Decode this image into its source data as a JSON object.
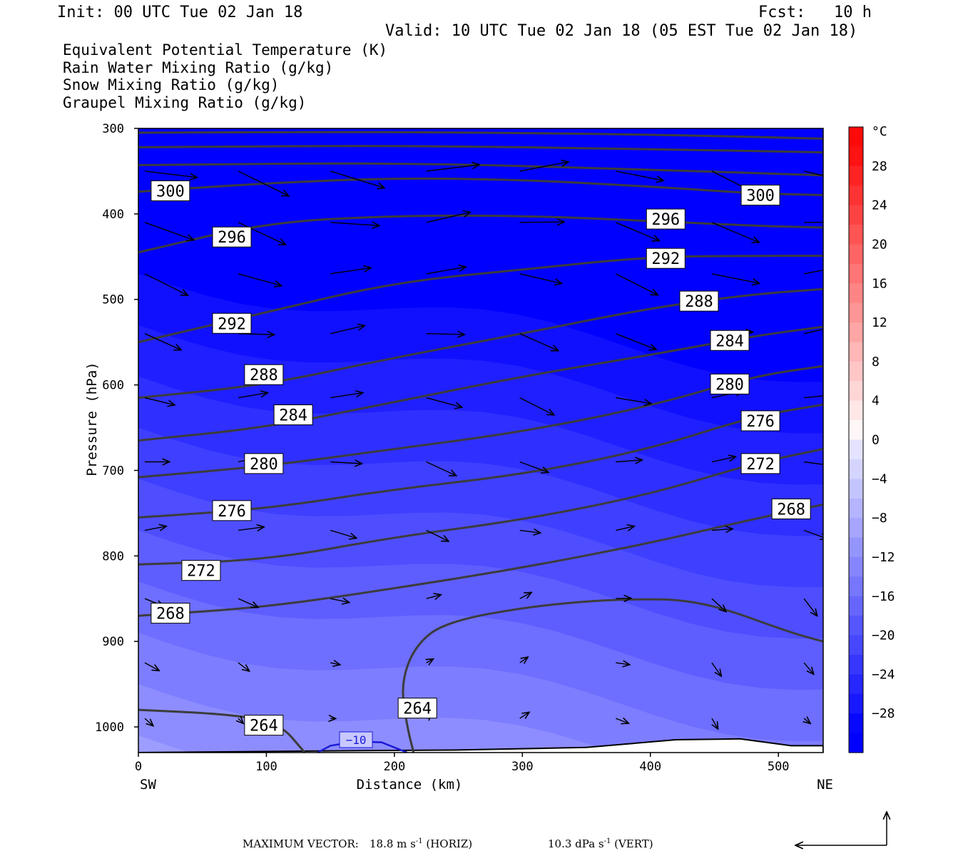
{
  "header": {
    "init": "Init: 00 UTC Tue 02 Jan 18",
    "fcst": "Fcst:   10 h",
    "valid": "Valid: 10 UTC Tue 02 Jan 18 (05 EST Tue 02 Jan 18)"
  },
  "legend": [
    {
      "label": "Equivalent Potential Temperature (K)",
      "color": "#555555"
    },
    {
      "label": "Rain Water Mixing Ratio (g/kg)",
      "color": "#1a7a1a"
    },
    {
      "label": "Snow Mixing Ratio (g/kg)",
      "color": "#ee8a4a"
    },
    {
      "label": "Graupel Mixing Ratio (g/kg)",
      "color": "#ee77ee"
    }
  ],
  "footer": {
    "max_vector_label": "MAXIMUM VECTOR:",
    "horiz": "18.8 m s",
    "horiz_unit": " (HORIZ)",
    "vert": "10.3 dPa s",
    "vert_unit": " (VERT)",
    "exp": "-1"
  },
  "chart_data": {
    "type": "contour",
    "xlabel": "Distance (km)",
    "ylabel": "Pressure (hPa)",
    "x_ends": {
      "left": "SW",
      "right": "NE"
    },
    "xlim": [
      0,
      535
    ],
    "ylim": [
      1030,
      300
    ],
    "x_ticks": [
      0,
      100,
      200,
      300,
      400,
      500
    ],
    "y_ticks": [
      300,
      400,
      500,
      600,
      700,
      800,
      900,
      1000
    ],
    "colorbar": {
      "unit": "°C",
      "ticks": [
        28,
        24,
        20,
        16,
        12,
        8,
        4,
        0,
        -4,
        -8,
        -12,
        -16,
        -20,
        -24,
        -28
      ],
      "step": 2,
      "range": [
        -32,
        32
      ]
    },
    "theta_e_contours": [
      {
        "value": 264,
        "points": [
          [
            0,
            980
          ],
          [
            70,
            985
          ],
          [
            110,
            995
          ],
          [
            130,
            1030
          ]
        ]
      },
      {
        "value": 264,
        "points": [
          [
            215,
            1030
          ],
          [
            210,
            1000
          ],
          [
            205,
            950
          ],
          [
            216,
            905
          ],
          [
            240,
            877
          ],
          [
            310,
            858
          ],
          [
            380,
            850
          ],
          [
            440,
            852
          ],
          [
            510,
            890
          ],
          [
            535,
            900
          ]
        ]
      },
      {
        "value": 268,
        "points": [
          [
            0,
            870
          ],
          [
            100,
            860
          ],
          [
            200,
            838
          ],
          [
            300,
            814
          ],
          [
            400,
            785
          ],
          [
            480,
            757
          ],
          [
            535,
            740
          ]
        ]
      },
      {
        "value": 272,
        "points": [
          [
            0,
            810
          ],
          [
            100,
            805
          ],
          [
            200,
            778
          ],
          [
            300,
            758
          ],
          [
            400,
            728
          ],
          [
            480,
            692
          ],
          [
            535,
            675
          ]
        ]
      },
      {
        "value": 276,
        "points": [
          [
            0,
            755
          ],
          [
            100,
            745
          ],
          [
            200,
            722
          ],
          [
            300,
            705
          ],
          [
            400,
            675
          ],
          [
            480,
            637
          ],
          [
            535,
            623
          ]
        ]
      },
      {
        "value": 280,
        "points": [
          [
            0,
            708
          ],
          [
            100,
            695
          ],
          [
            200,
            675
          ],
          [
            300,
            655
          ],
          [
            400,
            625
          ],
          [
            480,
            590
          ],
          [
            535,
            578
          ]
        ]
      },
      {
        "value": 284,
        "points": [
          [
            0,
            665
          ],
          [
            100,
            650
          ],
          [
            200,
            620
          ],
          [
            300,
            590
          ],
          [
            400,
            565
          ],
          [
            480,
            543
          ],
          [
            535,
            532
          ]
        ]
      },
      {
        "value": 288,
        "points": [
          [
            0,
            615
          ],
          [
            100,
            600
          ],
          [
            200,
            568
          ],
          [
            300,
            540
          ],
          [
            400,
            510
          ],
          [
            480,
            494
          ],
          [
            535,
            488
          ]
        ]
      },
      {
        "value": 292,
        "points": [
          [
            0,
            550
          ],
          [
            100,
            515
          ],
          [
            200,
            480
          ],
          [
            300,
            465
          ],
          [
            400,
            450
          ],
          [
            480,
            449
          ],
          [
            535,
            449
          ]
        ]
      },
      {
        "value": 296,
        "points": [
          [
            0,
            445
          ],
          [
            100,
            410
          ],
          [
            200,
            402
          ],
          [
            300,
            402
          ],
          [
            400,
            408
          ],
          [
            480,
            414
          ],
          [
            535,
            416
          ]
        ]
      },
      {
        "value": 300,
        "points": [
          [
            0,
            374
          ],
          [
            100,
            364
          ],
          [
            200,
            358
          ],
          [
            300,
            360
          ],
          [
            400,
            368
          ],
          [
            480,
            376
          ],
          [
            535,
            378
          ]
        ]
      },
      {
        "value": 304,
        "points": [
          [
            0,
            343
          ],
          [
            200,
            340
          ],
          [
            400,
            348
          ],
          [
            535,
            355
          ]
        ]
      },
      {
        "value": 308,
        "points": [
          [
            0,
            322
          ],
          [
            200,
            320
          ],
          [
            400,
            324
          ],
          [
            535,
            328
          ]
        ]
      },
      {
        "value": 312,
        "points": [
          [
            0,
            305
          ],
          [
            200,
            304
          ],
          [
            400,
            307
          ],
          [
            535,
            312
          ]
        ]
      }
    ],
    "contour_labels": [
      {
        "text": "300",
        "x": 25,
        "p": 373
      },
      {
        "text": "300",
        "x": 486,
        "p": 378
      },
      {
        "text": "296",
        "x": 73,
        "p": 427
      },
      {
        "text": "296",
        "x": 412,
        "p": 406
      },
      {
        "text": "292",
        "x": 73,
        "p": 528
      },
      {
        "text": "292",
        "x": 412,
        "p": 452
      },
      {
        "text": "288",
        "x": 98,
        "p": 588
      },
      {
        "text": "288",
        "x": 438,
        "p": 502
      },
      {
        "text": "284",
        "x": 121,
        "p": 635
      },
      {
        "text": "284",
        "x": 462,
        "p": 548
      },
      {
        "text": "280",
        "x": 98,
        "p": 692
      },
      {
        "text": "280",
        "x": 462,
        "p": 599
      },
      {
        "text": "276",
        "x": 73,
        "p": 747
      },
      {
        "text": "276",
        "x": 486,
        "p": 642
      },
      {
        "text": "272",
        "x": 49,
        "p": 817
      },
      {
        "text": "272",
        "x": 486,
        "p": 692
      },
      {
        "text": "268",
        "x": 25,
        "p": 867
      },
      {
        "text": "268",
        "x": 510,
        "p": 745
      },
      {
        "text": "264",
        "x": 98,
        "p": 998
      },
      {
        "text": "264",
        "x": 218,
        "p": 978
      }
    ],
    "isotherm_label": {
      "text": "−10",
      "x": 170,
      "p": 1015
    }
  }
}
